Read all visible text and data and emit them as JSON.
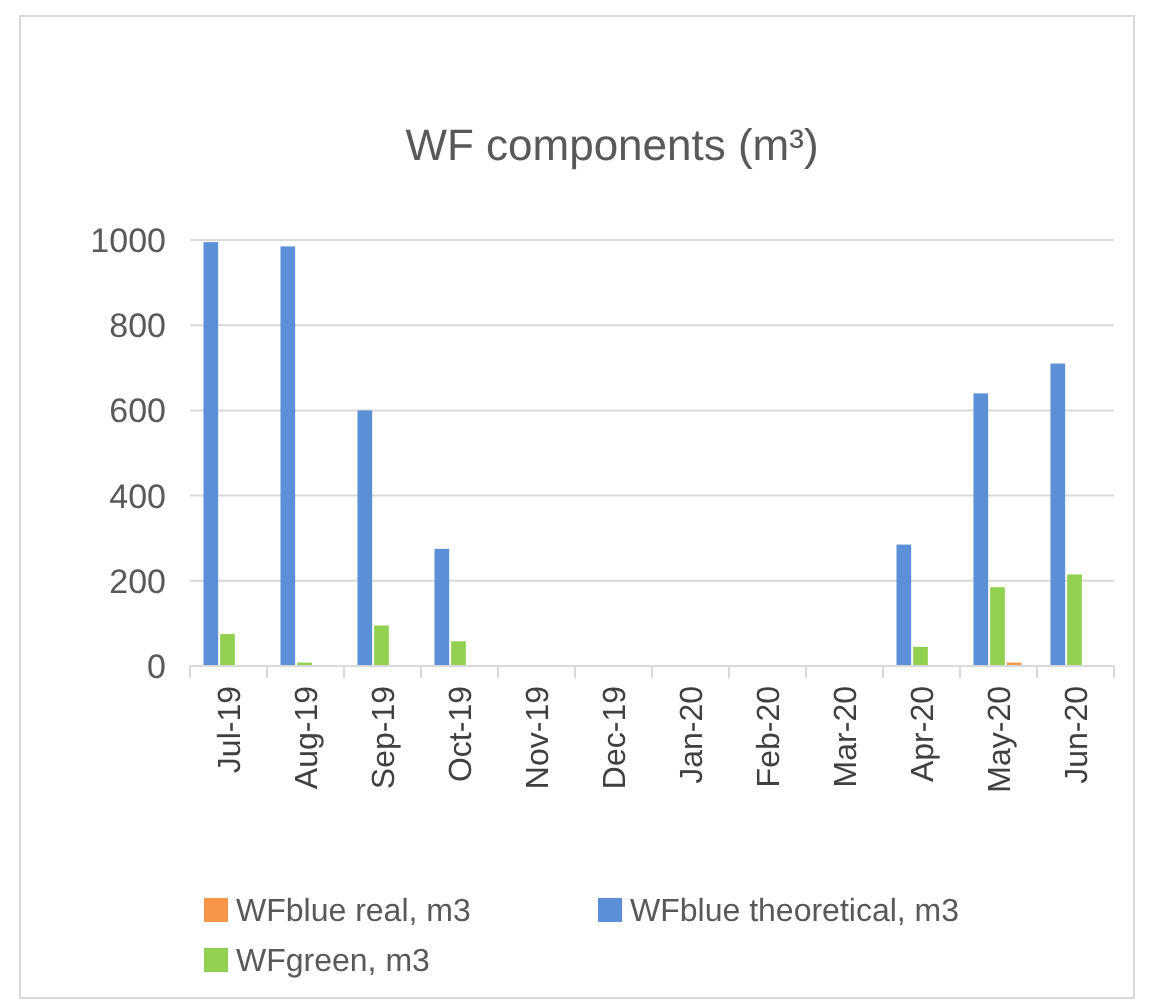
{
  "chart_data": {
    "type": "bar",
    "title": "WF components (m³)",
    "categories": [
      "Jul-19",
      "Aug-19",
      "Sep-19",
      "Oct-19",
      "Nov-19",
      "Dec-19",
      "Jan-20",
      "Feb-20",
      "Mar-20",
      "Apr-20",
      "May-20",
      "Jun-20"
    ],
    "series": [
      {
        "name": "WFblue theoretical, m3",
        "color": "#5b8fd6",
        "values": [
          995,
          985,
          600,
          275,
          0,
          0,
          0,
          0,
          0,
          285,
          640,
          710
        ]
      },
      {
        "name": "WFgreen, m3",
        "color": "#92d050",
        "values": [
          75,
          8,
          95,
          58,
          0,
          0,
          0,
          0,
          0,
          45,
          185,
          215
        ]
      },
      {
        "name": "WFblue real, m3",
        "color": "#f79646",
        "values": [
          0,
          0,
          0,
          0,
          0,
          0,
          0,
          0,
          0,
          0,
          8,
          0
        ]
      }
    ],
    "ylim": [
      0,
      1000
    ],
    "yticks": [
      0,
      200,
      400,
      600,
      800,
      1000
    ],
    "grid": "y",
    "legend": "bottom"
  }
}
